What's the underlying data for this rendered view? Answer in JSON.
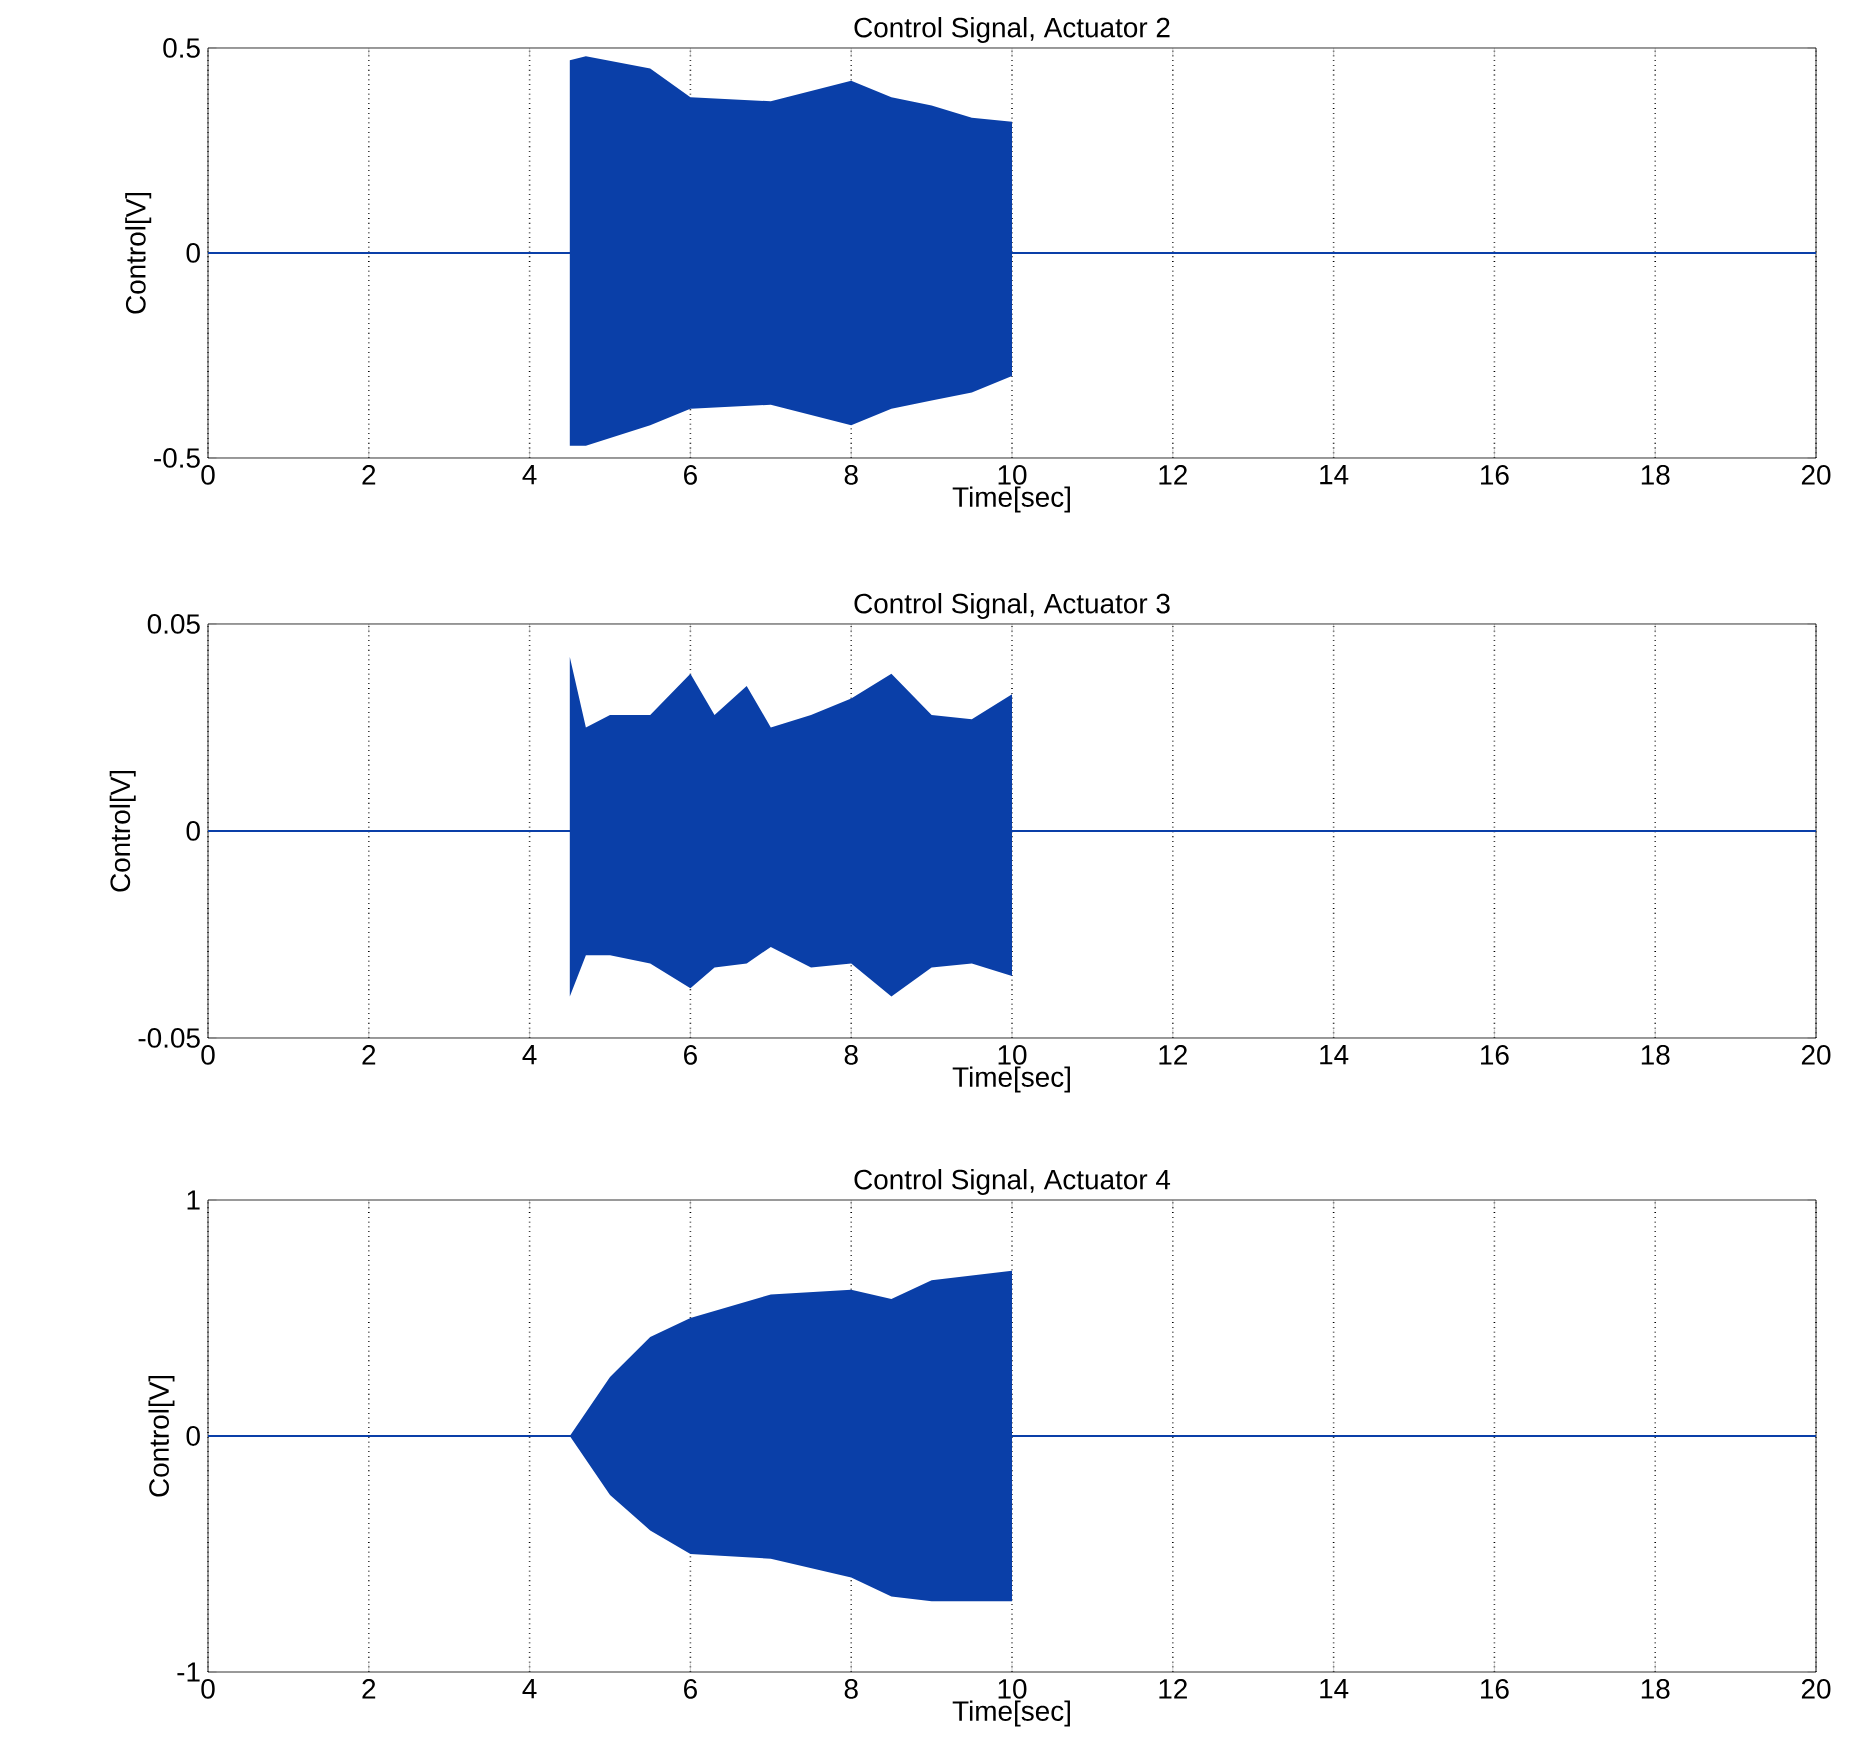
{
  "chart_data": [
    {
      "type": "line",
      "title": "Control Signal, Actuator 2",
      "xlabel": "Time[sec]",
      "ylabel": "Control[V]",
      "grid": "x",
      "xlim": [
        0,
        20
      ],
      "xticks": [
        0,
        2,
        4,
        6,
        8,
        10,
        12,
        14,
        16,
        18,
        20
      ],
      "ylim": [
        -0.5,
        0.5
      ],
      "yticks": [
        -0.5,
        0,
        0.5
      ],
      "series": [
        {
          "color": "#0a3fa8",
          "x": [
            0,
            4.5,
            4.7,
            5.5,
            6,
            7,
            8,
            8.5,
            9,
            9.5,
            10,
            20
          ],
          "values": [
            0,
            0,
            0,
            0,
            0,
            0,
            0,
            0,
            0,
            0,
            0,
            0
          ],
          "lower": [
            null,
            -0.47,
            -0.47,
            -0.42,
            -0.38,
            -0.37,
            -0.42,
            -0.38,
            -0.36,
            -0.34,
            -0.3,
            null
          ],
          "upper": [
            null,
            0.47,
            0.48,
            0.45,
            0.38,
            0.37,
            0.42,
            0.38,
            0.36,
            0.33,
            0.32,
            null
          ]
        }
      ]
    },
    {
      "type": "line",
      "title": "Control Signal, Actuator 3",
      "xlabel": "Time[sec]",
      "ylabel": "Control[V]",
      "grid": "x",
      "xlim": [
        0,
        20
      ],
      "xticks": [
        0,
        2,
        4,
        6,
        8,
        10,
        12,
        14,
        16,
        18,
        20
      ],
      "ylim": [
        -0.05,
        0.05
      ],
      "yticks": [
        -0.05,
        0,
        0.05
      ],
      "series": [
        {
          "color": "#0a3fa8",
          "x": [
            0,
            4.5,
            4.7,
            5,
            5.5,
            6,
            6.3,
            6.7,
            7,
            7.5,
            8,
            8.5,
            9,
            9.5,
            10,
            20
          ],
          "values": [
            0,
            0,
            0,
            0,
            0,
            0,
            0,
            0,
            0,
            0,
            0,
            0,
            0,
            0,
            0,
            0
          ],
          "lower": [
            null,
            -0.04,
            -0.03,
            -0.03,
            -0.032,
            -0.038,
            -0.033,
            -0.032,
            -0.028,
            -0.033,
            -0.032,
            -0.04,
            -0.033,
            -0.032,
            -0.035,
            null
          ],
          "upper": [
            null,
            0.042,
            0.025,
            0.028,
            0.028,
            0.038,
            0.028,
            0.035,
            0.025,
            0.028,
            0.032,
            0.038,
            0.028,
            0.027,
            0.033,
            null
          ]
        }
      ]
    },
    {
      "type": "line",
      "title": "Control Signal, Actuator 4",
      "xlabel": "Time[sec]",
      "ylabel": "Control[V]",
      "grid": "x",
      "xlim": [
        0,
        20
      ],
      "xticks": [
        0,
        2,
        4,
        6,
        8,
        10,
        12,
        14,
        16,
        18,
        20
      ],
      "ylim": [
        -1,
        1
      ],
      "yticks": [
        -1,
        0,
        1
      ],
      "series": [
        {
          "color": "#0a3fa8",
          "x": [
            0,
            4.5,
            5,
            5.5,
            6,
            7,
            8,
            8.5,
            9,
            10,
            20
          ],
          "values": [
            0,
            0,
            0,
            0,
            0,
            0,
            0,
            0,
            0,
            0,
            0
          ],
          "lower": [
            null,
            0,
            -0.25,
            -0.4,
            -0.5,
            -0.52,
            -0.6,
            -0.68,
            -0.7,
            -0.7,
            null
          ],
          "upper": [
            null,
            0,
            0.25,
            0.42,
            0.5,
            0.6,
            0.62,
            0.58,
            0.66,
            0.7,
            null
          ]
        }
      ]
    }
  ]
}
